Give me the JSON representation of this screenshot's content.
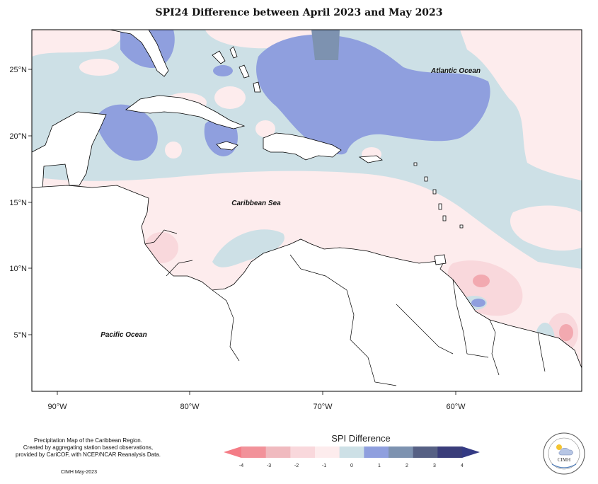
{
  "title": "SPI24 Difference between April 2023 and May 2023",
  "axes": {
    "x_ticks": [
      "90°W",
      "80°W",
      "70°W",
      "60°W"
    ],
    "y_ticks": [
      "25°N",
      "20°N",
      "15°N",
      "10°N",
      "5°N"
    ]
  },
  "map_labels": {
    "atlantic": "Atlantic Ocean",
    "caribbean": "Caribbean Sea",
    "pacific": "Pacific Ocean"
  },
  "legend": {
    "title": "SPI Difference",
    "ticks": [
      "-4",
      "-3",
      "-2",
      "-1",
      "0",
      "1",
      "2",
      "3",
      "4"
    ],
    "colors": [
      "#f2929a",
      "#f0babf",
      "#f9d8dc",
      "#fdeced",
      "#cde0e6",
      "#8f9fde",
      "#7d92b0",
      "#566084",
      "#3a3d7a"
    ],
    "low_arrow_color": "#f47c86",
    "high_arrow_color": "#343a84"
  },
  "colors": {
    "neutral_pos": "#cde0e6",
    "pos_1": "#8f9fde",
    "pos_2": "#7d92b0",
    "neutral_neg": "#fdeced",
    "neg_1": "#f9d8dc",
    "neg_2": "#f2a9b0"
  },
  "footnote": {
    "line1": "Precipitation Map of the Caribbean Region.",
    "line2": "Created by aggregating station based observations,",
    "line3": "provided by CariCOF, with NCEP/NCAR Reanalysis Data.",
    "credit": "CIMH May-2023"
  },
  "logo": {
    "text": "CIMH"
  }
}
